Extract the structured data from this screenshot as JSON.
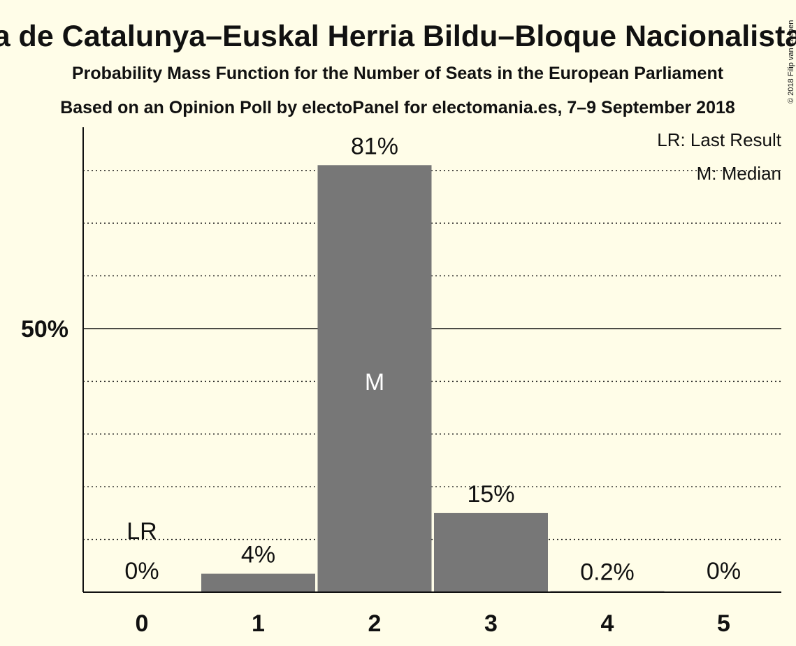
{
  "title": "a de Catalunya–Euskal Herria Bildu–Bloque Nacionalista",
  "subtitle1": "Probability Mass Function for the Number of Seats in the European Parliament",
  "subtitle2": "Based on an Opinion Poll by electoPanel for electomania.es, 7–9 September 2018",
  "copyright": "© 2018 Filip van Laenen",
  "legend": {
    "last_result": "LR: Last Result",
    "median": "M: Median"
  },
  "colors": {
    "background": "#fffde8",
    "bar": "#777777",
    "text": "#111111"
  },
  "chart_data": {
    "type": "bar",
    "categories": [
      "0",
      "1",
      "2",
      "3",
      "4",
      "5"
    ],
    "values": [
      0,
      3.5,
      81,
      15,
      0.2,
      0
    ],
    "value_labels": [
      "0%",
      "4%",
      "81%",
      "15%",
      "0.2%",
      "0%"
    ],
    "ylim": [
      0,
      88
    ],
    "y_tick_label": "50%",
    "y_tick_value": 50,
    "gridlines": [
      10,
      20,
      30,
      40,
      50,
      60,
      70,
      80
    ],
    "median_index": 2,
    "median_marker": "M",
    "last_result_index": 0,
    "last_result_marker": "LR",
    "legend_position": "top-right",
    "grid": true
  }
}
